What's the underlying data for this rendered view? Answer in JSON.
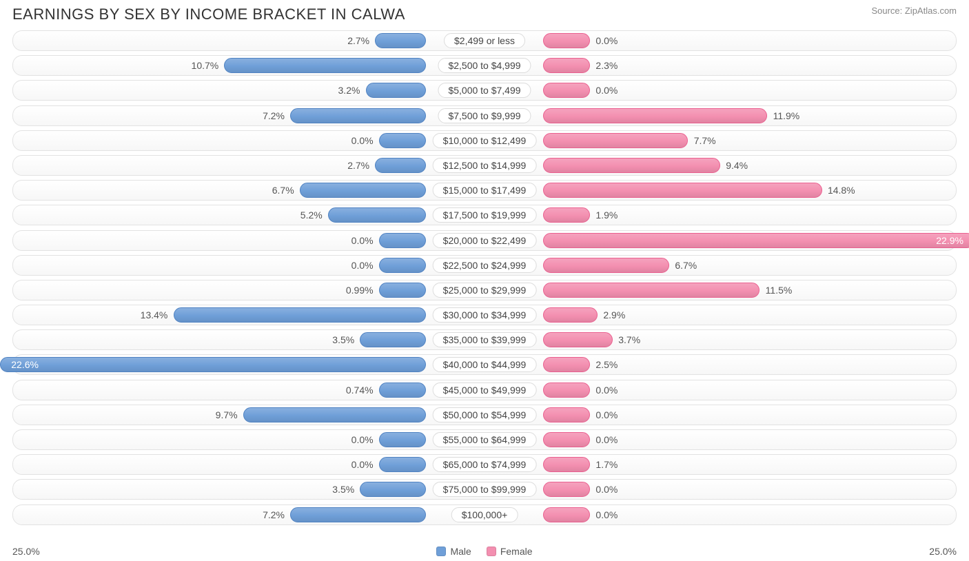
{
  "title": "EARNINGS BY SEX BY INCOME BRACKET IN CALWA",
  "source": "Source: ZipAtlas.com",
  "axis_max": 25.0,
  "axis_label_left": "25.0%",
  "axis_label_right": "25.0%",
  "colors": {
    "male_fill": "#6f9fd8",
    "male_stroke": "#4f82c2",
    "female_fill": "#f38fb0",
    "female_stroke": "#ea5f8f",
    "track_border": "#e2e2e2",
    "text": "#555555",
    "title_text": "#333333",
    "source_text": "#888888",
    "background": "#ffffff"
  },
  "legend": {
    "male": "Male",
    "female": "Female"
  },
  "min_bar_pct": 2.5,
  "center_label_half_pct": 6.2,
  "rows": [
    {
      "label": "$2,499 or less",
      "male": 2.7,
      "female": 0.0,
      "male_txt": "2.7%",
      "female_txt": "0.0%"
    },
    {
      "label": "$2,500 to $4,999",
      "male": 10.7,
      "female": 2.3,
      "male_txt": "10.7%",
      "female_txt": "2.3%"
    },
    {
      "label": "$5,000 to $7,499",
      "male": 3.2,
      "female": 0.0,
      "male_txt": "3.2%",
      "female_txt": "0.0%"
    },
    {
      "label": "$7,500 to $9,999",
      "male": 7.2,
      "female": 11.9,
      "male_txt": "7.2%",
      "female_txt": "11.9%"
    },
    {
      "label": "$10,000 to $12,499",
      "male": 0.0,
      "female": 7.7,
      "male_txt": "0.0%",
      "female_txt": "7.7%"
    },
    {
      "label": "$12,500 to $14,999",
      "male": 2.7,
      "female": 9.4,
      "male_txt": "2.7%",
      "female_txt": "9.4%"
    },
    {
      "label": "$15,000 to $17,499",
      "male": 6.7,
      "female": 14.8,
      "male_txt": "6.7%",
      "female_txt": "14.8%"
    },
    {
      "label": "$17,500 to $19,999",
      "male": 5.2,
      "female": 1.9,
      "male_txt": "5.2%",
      "female_txt": "1.9%"
    },
    {
      "label": "$20,000 to $22,499",
      "male": 0.0,
      "female": 22.9,
      "male_txt": "0.0%",
      "female_txt": "22.9%"
    },
    {
      "label": "$22,500 to $24,999",
      "male": 0.0,
      "female": 6.7,
      "male_txt": "0.0%",
      "female_txt": "6.7%"
    },
    {
      "label": "$25,000 to $29,999",
      "male": 0.99,
      "female": 11.5,
      "male_txt": "0.99%",
      "female_txt": "11.5%"
    },
    {
      "label": "$30,000 to $34,999",
      "male": 13.4,
      "female": 2.9,
      "male_txt": "13.4%",
      "female_txt": "2.9%"
    },
    {
      "label": "$35,000 to $39,999",
      "male": 3.5,
      "female": 3.7,
      "male_txt": "3.5%",
      "female_txt": "3.7%"
    },
    {
      "label": "$40,000 to $44,999",
      "male": 22.6,
      "female": 2.5,
      "male_txt": "22.6%",
      "female_txt": "2.5%"
    },
    {
      "label": "$45,000 to $49,999",
      "male": 0.74,
      "female": 0.0,
      "male_txt": "0.74%",
      "female_txt": "0.0%"
    },
    {
      "label": "$50,000 to $54,999",
      "male": 9.7,
      "female": 0.0,
      "male_txt": "9.7%",
      "female_txt": "0.0%"
    },
    {
      "label": "$55,000 to $64,999",
      "male": 0.0,
      "female": 0.0,
      "male_txt": "0.0%",
      "female_txt": "0.0%"
    },
    {
      "label": "$65,000 to $74,999",
      "male": 0.0,
      "female": 1.7,
      "male_txt": "0.0%",
      "female_txt": "1.7%"
    },
    {
      "label": "$75,000 to $99,999",
      "male": 3.5,
      "female": 0.0,
      "male_txt": "3.5%",
      "female_txt": "0.0%"
    },
    {
      "label": "$100,000+",
      "male": 7.2,
      "female": 0.0,
      "male_txt": "7.2%",
      "female_txt": "0.0%"
    }
  ]
}
